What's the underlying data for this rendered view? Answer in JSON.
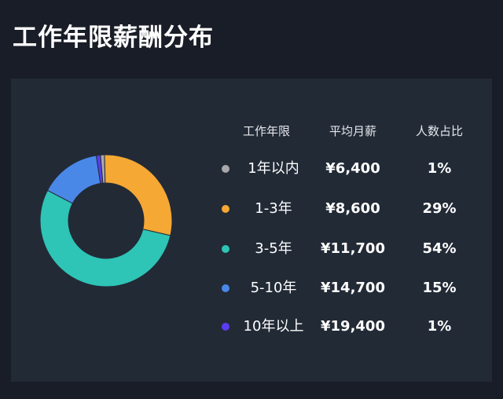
{
  "title": "工作年限薪酬分布",
  "colors": {
    "background": "#191d27",
    "panel": "#222a36"
  },
  "table": {
    "headers": [
      "工作年限",
      "平均月薪",
      "人数占比"
    ]
  },
  "chart_data": {
    "type": "pie",
    "style": "donut",
    "categories": [
      "1年以内",
      "1-3年",
      "3-5年",
      "5-10年",
      "10年以上"
    ],
    "salary_labels": [
      "¥6,400",
      "¥8,600",
      "¥11,700",
      "¥14,700",
      "¥19,400"
    ],
    "salaries": [
      6400,
      8600,
      11700,
      14700,
      19400
    ],
    "share_labels": [
      "1%",
      "29%",
      "54%",
      "15%",
      "1%"
    ],
    "values": [
      1,
      29,
      54,
      15,
      1
    ],
    "colors": [
      "#a8a8a8",
      "#f5a833",
      "#2ec4b6",
      "#4a88e8",
      "#5b3cf0"
    ],
    "legend": "right"
  }
}
